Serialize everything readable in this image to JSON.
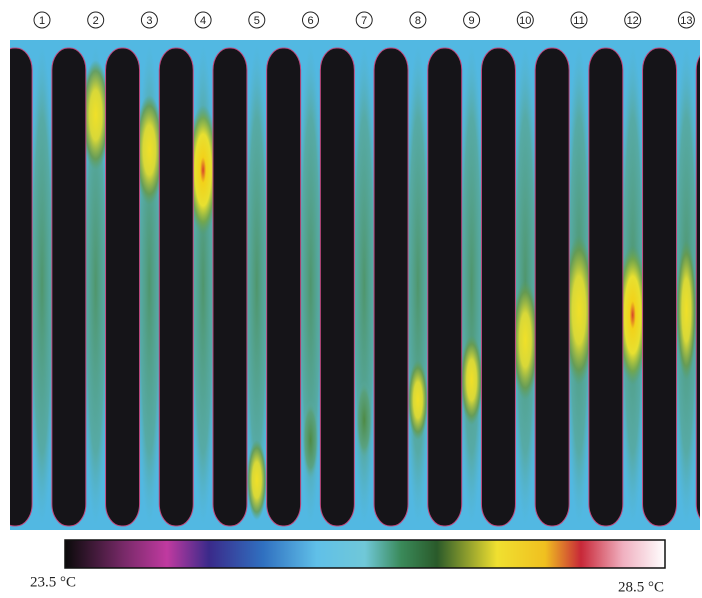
{
  "column_labels": [
    "1",
    "2",
    "3",
    "4",
    "5",
    "6",
    "7",
    "8",
    "9",
    "10",
    "11",
    "12",
    "13"
  ],
  "colorbar": {
    "min_label": "23.5 °C",
    "max_label": "28.5 °C"
  }
}
